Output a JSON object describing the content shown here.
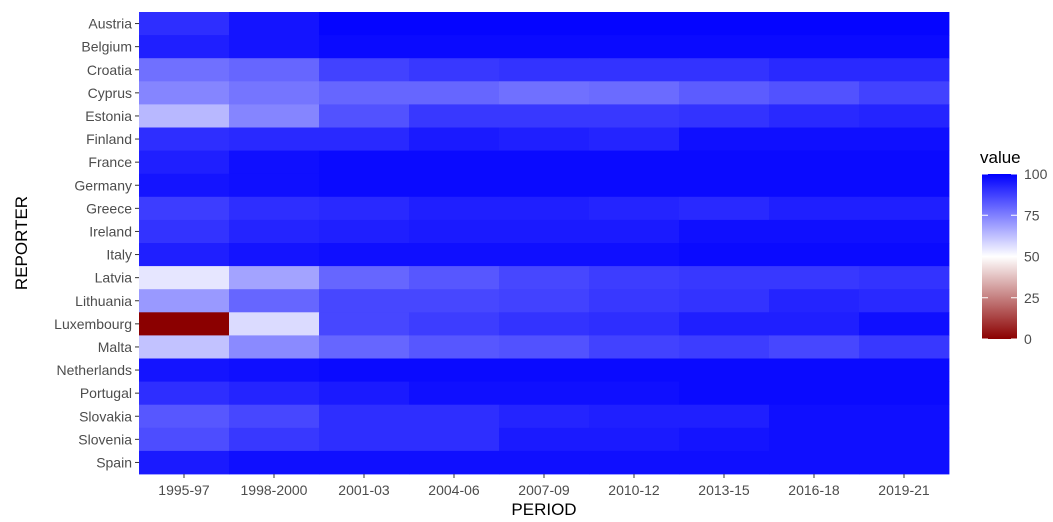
{
  "chart_data": {
    "type": "heatmap",
    "xlabel": "PERIOD",
    "ylabel": "REPORTER",
    "x": [
      "1995-97",
      "1998-2000",
      "2001-03",
      "2004-06",
      "2007-09",
      "2010-12",
      "2013-15",
      "2016-18",
      "2019-21"
    ],
    "y": [
      "Austria",
      "Belgium",
      "Croatia",
      "Cyprus",
      "Estonia",
      "Finland",
      "France",
      "Germany",
      "Greece",
      "Ireland",
      "Italy",
      "Latvia",
      "Lithuania",
      "Luxembourg",
      "Malta",
      "Netherlands",
      "Portugal",
      "Slovakia",
      "Slovenia",
      "Spain"
    ],
    "values": [
      [
        91,
        96,
        99,
        99,
        99,
        99,
        99,
        99,
        99
      ],
      [
        94,
        96,
        98,
        98,
        98,
        98,
        98,
        98,
        98
      ],
      [
        78,
        80,
        87,
        89,
        90,
        90,
        90,
        92,
        92
      ],
      [
        74,
        77,
        80,
        80,
        78,
        79,
        82,
        84,
        87
      ],
      [
        64,
        74,
        84,
        89,
        89,
        89,
        90,
        92,
        93
      ],
      [
        91,
        92,
        92,
        95,
        94,
        93,
        97,
        97,
        97
      ],
      [
        94,
        97,
        98,
        98,
        98,
        98,
        98,
        98,
        98
      ],
      [
        96,
        97,
        98,
        98,
        98,
        98,
        98,
        98,
        98
      ],
      [
        88,
        91,
        92,
        94,
        94,
        93,
        92,
        94,
        94
      ],
      [
        90,
        93,
        94,
        95,
        95,
        95,
        97,
        97,
        97
      ],
      [
        94,
        96,
        97,
        97,
        97,
        97,
        98,
        98,
        98
      ],
      [
        55,
        68,
        80,
        83,
        86,
        88,
        89,
        89,
        90
      ],
      [
        70,
        80,
        86,
        86,
        87,
        89,
        90,
        93,
        92
      ],
      [
        0,
        57,
        86,
        88,
        90,
        91,
        94,
        94,
        97
      ],
      [
        62,
        73,
        80,
        83,
        84,
        87,
        88,
        86,
        89
      ],
      [
        96,
        97,
        98,
        98,
        98,
        98,
        98,
        98,
        98
      ],
      [
        91,
        93,
        95,
        97,
        97,
        97,
        98,
        98,
        98
      ],
      [
        83,
        86,
        91,
        91,
        93,
        94,
        94,
        97,
        97
      ],
      [
        85,
        89,
        91,
        91,
        95,
        95,
        96,
        97,
        97
      ],
      [
        95,
        97,
        97,
        97,
        97,
        97,
        97,
        97,
        97
      ]
    ],
    "colorscale": {
      "low": "#8b0000",
      "mid": "#ffffff",
      "high": "#0000ff",
      "midpoint": 50,
      "range": [
        0,
        100
      ]
    },
    "legend": {
      "title": "value",
      "ticks": [
        0,
        25,
        50,
        75,
        100
      ],
      "position": "right"
    },
    "panel_background": "#ebebeb",
    "grid": true
  }
}
